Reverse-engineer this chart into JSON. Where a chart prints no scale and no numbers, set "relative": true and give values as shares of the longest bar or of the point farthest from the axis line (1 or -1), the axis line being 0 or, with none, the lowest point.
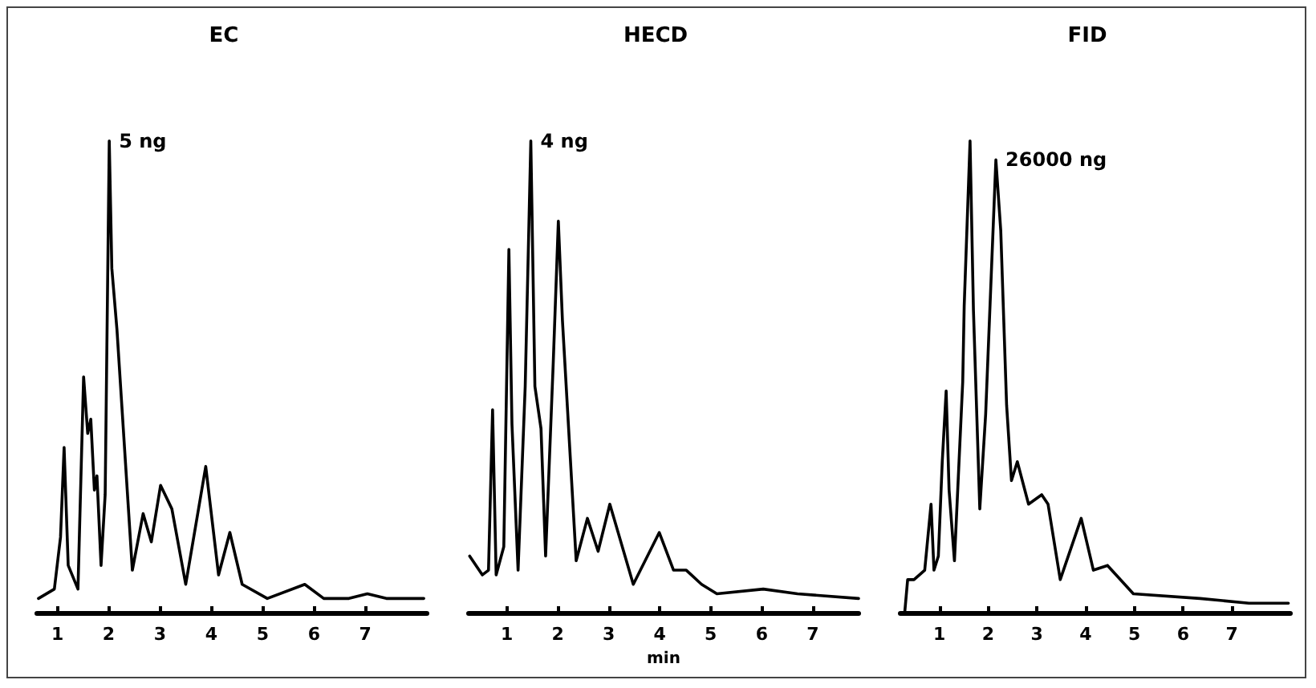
{
  "chart_data": [
    {
      "type": "line",
      "title": "EC",
      "relative": true,
      "tick_labels": "x",
      "grid": false,
      "marker": "none",
      "line_style": "solid",
      "xlim": [
        0.6,
        8.2
      ],
      "xticks": [
        1,
        2,
        3,
        4,
        5,
        6,
        7
      ],
      "annotations": [
        {
          "text": "5 ng",
          "x": 2.01,
          "y": 1.0
        }
      ],
      "series": [
        {
          "color": "#000000",
          "x": [
            0.63,
            0.94,
            1.06,
            1.13,
            1.21,
            1.4,
            1.51,
            1.59,
            1.65,
            1.72,
            1.77,
            1.85,
            1.93,
            2.01,
            2.06,
            2.16,
            2.46,
            2.67,
            2.83,
            3.01,
            3.23,
            3.5,
            3.89,
            4.14,
            4.36,
            4.6,
            5.09,
            5.82,
            6.19,
            6.68,
            7.04,
            7.41,
            8.14
          ],
          "values": [
            0.03,
            0.05,
            0.16,
            0.35,
            0.1,
            0.05,
            0.5,
            0.38,
            0.41,
            0.26,
            0.29,
            0.1,
            0.25,
            1.0,
            0.73,
            0.6,
            0.09,
            0.21,
            0.15,
            0.27,
            0.22,
            0.06,
            0.31,
            0.08,
            0.17,
            0.06,
            0.03,
            0.06,
            0.03,
            0.03,
            0.04,
            0.03,
            0.03
          ]
        }
      ]
    },
    {
      "type": "line",
      "title": "HECD",
      "xlabel": "min",
      "relative": true,
      "tick_labels": "x",
      "grid": false,
      "marker": "none",
      "line_style": "solid",
      "xlim": [
        0.25,
        7.9
      ],
      "xticks": [
        1,
        2,
        3,
        4,
        5,
        6,
        7
      ],
      "annotations": [
        {
          "text": "4 ng",
          "x": 1.47,
          "y": 1.0
        }
      ],
      "series": [
        {
          "color": "#000000",
          "x": [
            0.27,
            0.52,
            0.64,
            0.72,
            0.79,
            0.94,
            1.04,
            1.1,
            1.22,
            1.36,
            1.47,
            1.55,
            1.67,
            1.76,
            1.91,
            2.01,
            2.09,
            2.36,
            2.58,
            2.79,
            3.02,
            3.48,
            3.99,
            4.27,
            4.52,
            4.82,
            5.12,
            6.03,
            6.7,
            7.9
          ],
          "values": [
            0.12,
            0.08,
            0.09,
            0.43,
            0.08,
            0.14,
            0.77,
            0.4,
            0.09,
            0.48,
            1.0,
            0.48,
            0.39,
            0.12,
            0.53,
            0.83,
            0.62,
            0.11,
            0.2,
            0.13,
            0.23,
            0.06,
            0.17,
            0.09,
            0.09,
            0.06,
            0.04,
            0.05,
            0.04,
            0.03
          ]
        }
      ]
    },
    {
      "type": "line",
      "title": "FID",
      "relative": true,
      "tick_labels": "x",
      "grid": false,
      "marker": "none",
      "line_style": "solid",
      "xlim": [
        0.2,
        8.2
      ],
      "xticks": [
        1,
        2,
        3,
        4,
        5,
        6,
        7
      ],
      "annotations": [
        {
          "text": "26000 ng",
          "x": 2.16,
          "y": 0.96
        }
      ],
      "series": [
        {
          "color": "#000000",
          "x": [
            0.29,
            0.35,
            0.48,
            0.7,
            0.83,
            0.89,
            0.98,
            1.06,
            1.14,
            1.2,
            1.31,
            1.48,
            1.51,
            1.63,
            1.7,
            1.83,
            1.95,
            2.16,
            2.26,
            2.38,
            2.48,
            2.6,
            2.83,
            3.1,
            3.23,
            3.48,
            3.91,
            4.16,
            4.45,
            4.98,
            6.35,
            7.35,
            8.16
          ],
          "values": [
            0.0,
            0.07,
            0.07,
            0.09,
            0.23,
            0.09,
            0.12,
            0.32,
            0.47,
            0.26,
            0.11,
            0.49,
            0.65,
            1.0,
            0.64,
            0.22,
            0.42,
            0.96,
            0.81,
            0.44,
            0.28,
            0.32,
            0.23,
            0.25,
            0.23,
            0.07,
            0.2,
            0.09,
            0.1,
            0.04,
            0.03,
            0.02,
            0.02
          ]
        }
      ]
    }
  ]
}
